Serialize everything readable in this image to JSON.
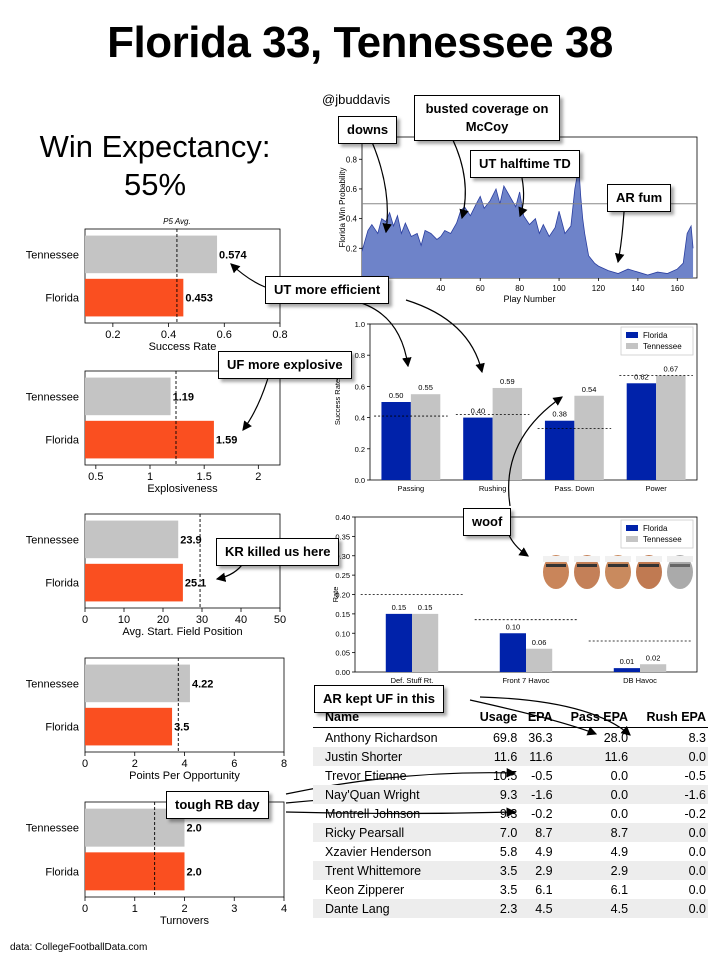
{
  "title": "Florida 33, Tennessee 38",
  "handle": "@jbuddavis",
  "win_expectancy": {
    "label": "Win Expectancy:",
    "value": "55%"
  },
  "source": "data: CollegeFootballData.com",
  "colors": {
    "florida_orange": "#fa4f20",
    "tennessee_gray": "#c4c4c4",
    "florida_blue": "#0022aa",
    "wp_fill": "#6e83c9",
    "wp_line": "#2b3fa0"
  },
  "annotations": {
    "downs": "downs",
    "busted": "busted coverage on McCoy",
    "halftime": "UT halftime TD",
    "ar_fum": "AR fum",
    "ut_efficient": "UT more efficient",
    "uf_explosive": "UF more explosive",
    "kr": "KR killed us here",
    "woof": "woof",
    "ar_kept": "AR kept UF in this",
    "tough_rb": "tough RB day"
  },
  "chart_data": [
    {
      "id": "success_rate",
      "type": "bar",
      "orientation": "horizontal",
      "title": "P5 Avg.",
      "xlabel": "Success Rate",
      "categories": [
        "Tennessee",
        "Florida"
      ],
      "values": [
        0.574,
        0.453
      ],
      "value_labels": [
        "0.574",
        "0.453"
      ],
      "reference": 0.43,
      "xlim": [
        0.1,
        0.8
      ],
      "ticks": [
        0.2,
        0.4,
        0.6,
        0.8
      ],
      "tick_labels": [
        "0.2",
        "0.4",
        "0.6",
        "0.8"
      ]
    },
    {
      "id": "explosiveness",
      "type": "bar",
      "orientation": "horizontal",
      "xlabel": "Explosiveness",
      "categories": [
        "Tennessee",
        "Florida"
      ],
      "values": [
        1.19,
        1.59
      ],
      "value_labels": [
        "1.19",
        "1.59"
      ],
      "reference": 1.24,
      "xlim": [
        0.4,
        2.2
      ],
      "ticks": [
        0.5,
        1,
        1.5,
        2
      ],
      "tick_labels": [
        "0.5",
        "1",
        "1.5",
        "2"
      ]
    },
    {
      "id": "field_position",
      "type": "bar",
      "orientation": "horizontal",
      "xlabel": "Avg. Start. Field Position",
      "categories": [
        "Tennessee",
        "Florida"
      ],
      "values": [
        23.9,
        25.1
      ],
      "value_labels": [
        "23.9",
        "25.1"
      ],
      "reference": 29.5,
      "xlim": [
        0,
        50
      ],
      "ticks": [
        0,
        10,
        20,
        30,
        40,
        50
      ],
      "tick_labels": [
        "0",
        "10",
        "20",
        "30",
        "40",
        "50"
      ]
    },
    {
      "id": "points_per_opp",
      "type": "bar",
      "orientation": "horizontal",
      "xlabel": "Points Per Opportunity",
      "categories": [
        "Tennessee",
        "Florida"
      ],
      "values": [
        4.22,
        3.5
      ],
      "value_labels": [
        "4.22",
        "3.5"
      ],
      "reference": 3.75,
      "xlim": [
        0,
        8
      ],
      "ticks": [
        0,
        2,
        4,
        6,
        8
      ],
      "tick_labels": [
        "0",
        "2",
        "4",
        "6",
        "8"
      ]
    },
    {
      "id": "turnovers",
      "type": "bar",
      "orientation": "horizontal",
      "xlabel": "Turnovers",
      "categories": [
        "Tennessee",
        "Florida"
      ],
      "values": [
        2.0,
        2.0
      ],
      "value_labels": [
        "2.0",
        "2.0"
      ],
      "reference": 1.4,
      "xlim": [
        0,
        4
      ],
      "ticks": [
        0,
        1,
        2,
        3,
        4
      ],
      "tick_labels": [
        "0",
        "1",
        "2",
        "3",
        "4"
      ]
    },
    {
      "id": "win_prob",
      "type": "area",
      "xlabel": "Play Number",
      "ylabel": "Florida Win Probability",
      "xlim": [
        0,
        170
      ],
      "ylim": [
        0,
        0.95
      ],
      "reference": 0.5,
      "xticks": [
        40,
        60,
        80,
        100,
        120,
        140,
        160
      ],
      "xtick_labels": [
        "40",
        "60",
        "80",
        "100",
        "120",
        "140",
        "160"
      ],
      "yticks": [
        0.2,
        0.4,
        0.6,
        0.8
      ],
      "ytick_labels": [
        "0.2",
        "0.4",
        "0.6",
        "0.8"
      ],
      "x": [
        0,
        3,
        5,
        8,
        10,
        12,
        14,
        16,
        18,
        20,
        22,
        25,
        28,
        30,
        32,
        35,
        38,
        40,
        42,
        45,
        48,
        50,
        52,
        55,
        58,
        60,
        62,
        65,
        68,
        70,
        72,
        75,
        78,
        80,
        82,
        85,
        88,
        90,
        92,
        95,
        98,
        100,
        103,
        106,
        108,
        110,
        111,
        112,
        113,
        115,
        118,
        120,
        125,
        130,
        135,
        140,
        145,
        150,
        155,
        160,
        163,
        165,
        167,
        168
      ],
      "y": [
        0.18,
        0.32,
        0.36,
        0.3,
        0.4,
        0.38,
        0.44,
        0.35,
        0.42,
        0.3,
        0.37,
        0.28,
        0.3,
        0.22,
        0.32,
        0.3,
        0.26,
        0.28,
        0.32,
        0.3,
        0.37,
        0.45,
        0.48,
        0.42,
        0.5,
        0.55,
        0.47,
        0.52,
        0.6,
        0.5,
        0.62,
        0.55,
        0.48,
        0.58,
        0.42,
        0.36,
        0.4,
        0.3,
        0.36,
        0.28,
        0.34,
        0.45,
        0.3,
        0.35,
        0.6,
        0.75,
        0.55,
        0.4,
        0.3,
        0.15,
        0.1,
        0.08,
        0.05,
        0.03,
        0.06,
        0.04,
        0.02,
        0.04,
        0.03,
        0.06,
        0.1,
        0.3,
        0.35,
        0.2
      ]
    },
    {
      "id": "success_by_type",
      "type": "bar",
      "ylabel": "Success Rate",
      "categories": [
        "Passing",
        "Rushing",
        "Pass. Down",
        "Power"
      ],
      "series": [
        {
          "name": "Florida",
          "values": [
            0.5,
            0.4,
            0.38,
            0.62
          ],
          "labels": [
            "0.50",
            "0.40",
            "0.38",
            "0.62"
          ]
        },
        {
          "name": "Tennessee",
          "values": [
            0.55,
            0.59,
            0.54,
            0.67
          ],
          "labels": [
            "0.55",
            "0.59",
            "0.54",
            "0.67"
          ]
        }
      ],
      "references": [
        0.41,
        0.42,
        0.33,
        0.67
      ],
      "ylim": [
        0,
        1.0
      ],
      "yticks": [
        0,
        0.2,
        0.4,
        0.6,
        0.8,
        1.0
      ],
      "ytick_labels": [
        "0.0",
        "0.2",
        "0.4",
        "0.6",
        "0.8",
        "1.0"
      ],
      "legend": "top-right"
    },
    {
      "id": "havoc",
      "type": "bar",
      "ylabel": "Rate",
      "categories": [
        "Def. Stuff Rt.",
        "Front 7 Havoc",
        "DB Havoc"
      ],
      "series": [
        {
          "name": "Florida",
          "values": [
            0.15,
            0.1,
            0.01
          ],
          "labels": [
            "0.15",
            "0.10",
            "0.01"
          ]
        },
        {
          "name": "Tennessee",
          "values": [
            0.15,
            0.06,
            0.02
          ],
          "labels": [
            "0.15",
            "0.06",
            "0.02"
          ]
        }
      ],
      "references": [
        0.2,
        0.135,
        0.08
      ],
      "ylim": [
        0,
        0.4
      ],
      "yticks": [
        0,
        0.05,
        0.1,
        0.15,
        0.2,
        0.25,
        0.3,
        0.35,
        0.4
      ],
      "ytick_labels": [
        "0.00",
        "0.05",
        "0.10",
        "0.15",
        "0.20",
        "0.25",
        "0.30",
        "0.35",
        "0.40"
      ],
      "legend": "top-right"
    },
    {
      "id": "epa_table",
      "type": "table",
      "columns": [
        "Name",
        "Usage",
        "EPA",
        "Pass EPA",
        "Rush EPA"
      ],
      "rows": [
        [
          "Anthony Richardson",
          "69.8",
          "36.3",
          "28.0",
          "8.3"
        ],
        [
          "Justin Shorter",
          "11.6",
          "11.6",
          "11.6",
          "0.0"
        ],
        [
          "Trevor Etienne",
          "10.5",
          "-0.5",
          "0.0",
          "-0.5"
        ],
        [
          "Nay'Quan Wright",
          "9.3",
          "-1.6",
          "0.0",
          "-1.6"
        ],
        [
          "Montrell Johnson",
          "9.3",
          "-0.2",
          "0.0",
          "-0.2"
        ],
        [
          "Ricky Pearsall",
          "7.0",
          "8.7",
          "8.7",
          "0.0"
        ],
        [
          "Xzavier Henderson",
          "5.8",
          "4.9",
          "4.9",
          "0.0"
        ],
        [
          "Trent Whittemore",
          "3.5",
          "2.9",
          "2.9",
          "0.0"
        ],
        [
          "Keon Zipperer",
          "3.5",
          "6.1",
          "6.1",
          "0.0"
        ],
        [
          "Dante Lang",
          "2.3",
          "4.5",
          "4.5",
          "0.0"
        ]
      ]
    }
  ]
}
